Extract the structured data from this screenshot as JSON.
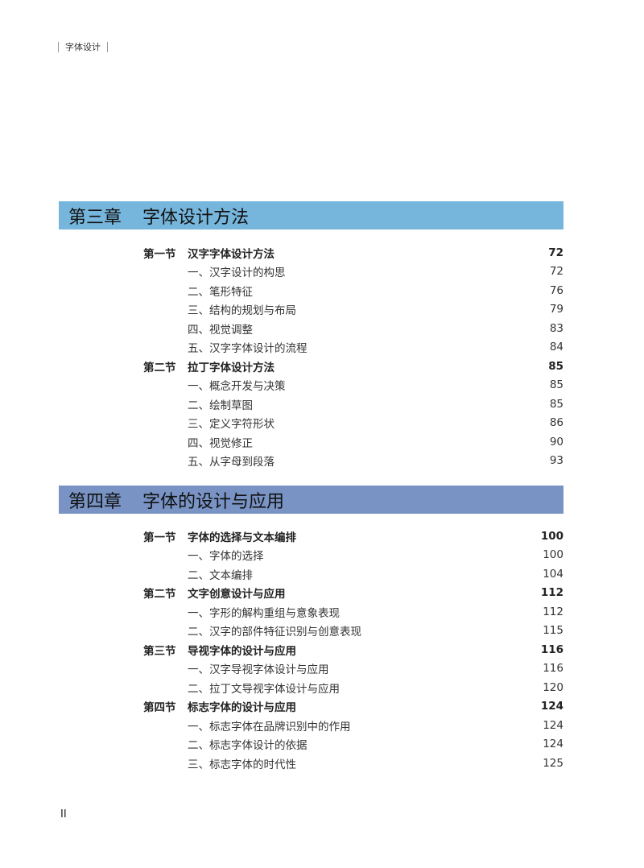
{
  "header": {
    "running_title": "字体设计"
  },
  "colors": {
    "chapter3_bar": "#77b6dc",
    "chapter4_bar": "#7893c4"
  },
  "chapters": [
    {
      "number": "第三章",
      "title": "字体设计方法",
      "entries": [
        {
          "type": "section",
          "label": "第一节",
          "title": "汉字字体设计方法",
          "page": "72"
        },
        {
          "type": "item",
          "title": "一、汉字设计的构思",
          "page": "72"
        },
        {
          "type": "item",
          "title": "二、笔形特征",
          "page": "76"
        },
        {
          "type": "item",
          "title": "三、结构的规划与布局",
          "page": "79"
        },
        {
          "type": "item",
          "title": "四、视觉调整",
          "page": "83"
        },
        {
          "type": "item",
          "title": "五、汉字字体设计的流程",
          "page": "84"
        },
        {
          "type": "section",
          "label": "第二节",
          "title": "拉丁字体设计方法",
          "page": "85"
        },
        {
          "type": "item",
          "title": "一、概念开发与决策",
          "page": "85"
        },
        {
          "type": "item",
          "title": "二、绘制草图",
          "page": "85"
        },
        {
          "type": "item",
          "title": "三、定义字符形状",
          "page": "86"
        },
        {
          "type": "item",
          "title": "四、视觉修正",
          "page": "90"
        },
        {
          "type": "item",
          "title": "五、从字母到段落",
          "page": "93"
        }
      ]
    },
    {
      "number": "第四章",
      "title": "字体的设计与应用",
      "entries": [
        {
          "type": "section",
          "label": "第一节",
          "title": "字体的选择与文本编排",
          "page": "100"
        },
        {
          "type": "item",
          "title": "一、字体的选择",
          "page": "100"
        },
        {
          "type": "item",
          "title": "二、文本编排",
          "page": "104"
        },
        {
          "type": "section",
          "label": "第二节",
          "title": "文字创意设计与应用",
          "page": "112"
        },
        {
          "type": "item",
          "title": "一、字形的解构重组与意象表现",
          "page": "112"
        },
        {
          "type": "item",
          "title": "二、汉字的部件特征识别与创意表现",
          "page": "115"
        },
        {
          "type": "section",
          "label": "第三节",
          "title": "导视字体的设计与应用",
          "page": "116"
        },
        {
          "type": "item",
          "title": "一、汉字导视字体设计与应用",
          "page": "116"
        },
        {
          "type": "item",
          "title": "二、拉丁文导视字体设计与应用",
          "page": "120"
        },
        {
          "type": "section",
          "label": "第四节",
          "title": "标志字体的设计与应用",
          "page": "124"
        },
        {
          "type": "item",
          "title": "一、标志字体在品牌识别中的作用",
          "page": "124"
        },
        {
          "type": "item",
          "title": "二、标志字体设计的依据",
          "page": "124"
        },
        {
          "type": "item",
          "title": "三、标志字体的时代性",
          "page": "125"
        }
      ]
    }
  ],
  "folio": "II"
}
